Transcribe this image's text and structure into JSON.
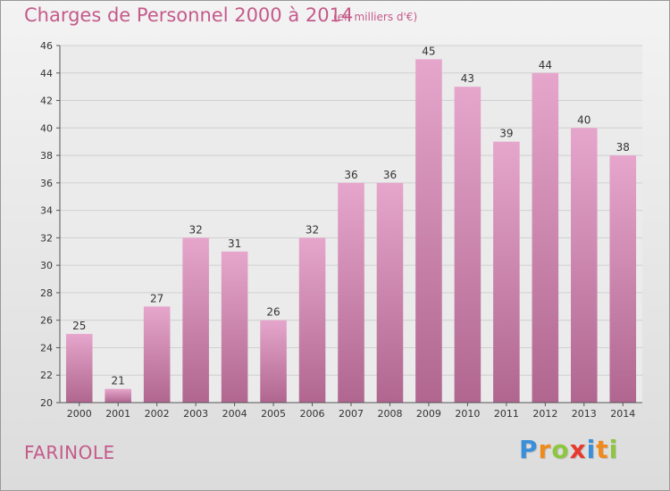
{
  "title": "Charges de Personnel 2000 à 2014",
  "subtitle": "(en milliers d'€)",
  "place": "FARINOLE",
  "logo": {
    "text": "Proxiti",
    "letters": [
      {
        "ch": "P",
        "color": "#3b8fd8"
      },
      {
        "ch": "r",
        "color": "#f08a1c"
      },
      {
        "ch": "o",
        "color": "#8dc63f"
      },
      {
        "ch": "x",
        "color": "#e63a2e"
      },
      {
        "ch": "i",
        "color": "#3b8fd8"
      },
      {
        "ch": "t",
        "color": "#f08a1c"
      },
      {
        "ch": "i",
        "color": "#8dc63f"
      }
    ]
  },
  "colors": {
    "title": "#c45a8a",
    "bar_top": "#e6a6cc",
    "bar_bottom": "#b0668f",
    "plot_bg": "#ebebeb",
    "grid": "#d0d0d0"
  },
  "chart_data": {
    "type": "bar",
    "title": "Charges de Personnel 2000 à 2014",
    "subtitle": "(en milliers d'€)",
    "categories": [
      "2000",
      "2001",
      "2002",
      "2003",
      "2004",
      "2005",
      "2006",
      "2007",
      "2008",
      "2009",
      "2010",
      "2011",
      "2012",
      "2013",
      "2014"
    ],
    "values": [
      25,
      21,
      27,
      32,
      31,
      26,
      32,
      36,
      36,
      45,
      43,
      39,
      44,
      40,
      38
    ],
    "ylim": [
      20,
      46
    ],
    "yticks": [
      20,
      22,
      24,
      26,
      28,
      30,
      32,
      34,
      36,
      38,
      40,
      42,
      44,
      46
    ],
    "xlabel": "",
    "ylabel": "",
    "grid": true,
    "data_labels": true
  }
}
